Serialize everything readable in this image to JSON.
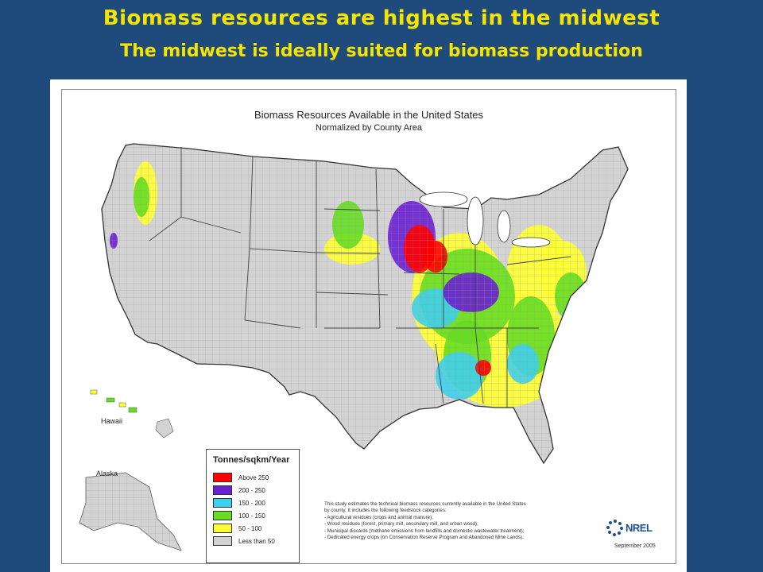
{
  "slide": {
    "title": "Biomass resources are highest in the midwest",
    "subtitle": "The midwest is ideally suited for biomass production"
  },
  "map": {
    "title": "Biomass Resources Available in the United States",
    "subtitle": "Normalized by County Area",
    "insets": {
      "hawaii": "Hawaii",
      "alaska": "Alaska"
    },
    "legend": {
      "title": "Tonnes/sqkm/Year",
      "items": [
        {
          "label": "Above 250",
          "color": "#ff0000"
        },
        {
          "label": "200 - 250",
          "color": "#6a1fd0"
        },
        {
          "label": "150 - 200",
          "color": "#3fcfee"
        },
        {
          "label": "100 - 150",
          "color": "#66dd22"
        },
        {
          "label": "50 - 100",
          "color": "#ffff33"
        },
        {
          "label": "Less than 50",
          "color": "#d3d3d3"
        }
      ]
    },
    "note": [
      "This study estimates the technical biomass resources currently available in the United States",
      "by county. It includes the following feedstock categories:",
      "  - Agricultural residues (crops and animal manure);",
      "  - Wood residues (forest, primary mill, secondary mill, and urban wood);",
      "  - Municipal discards (methane emissions from landfills and domestic wastewater treatment);",
      "  - Dedicated energy crops (on Conservation Reserve Program and Abandoned Mine Lands)."
    ],
    "logo": "NREL",
    "date": "September 2005"
  }
}
